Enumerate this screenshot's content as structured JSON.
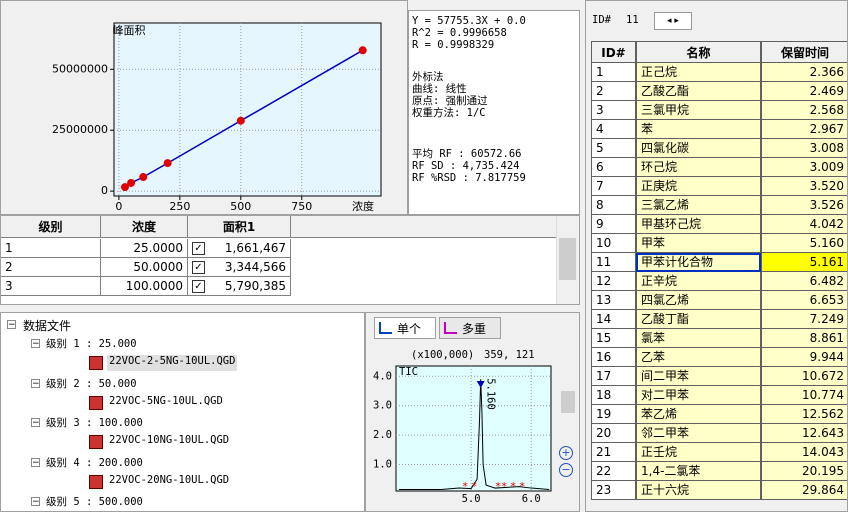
{
  "calibration_chart": {
    "type": "scatter",
    "title": "峰面积",
    "xlabel": "浓度",
    "xlim": [
      -20,
      1075
    ],
    "ylim": [
      -2000000,
      69000000
    ],
    "xticks": [
      0,
      250,
      500,
      750
    ],
    "yticks": [
      0,
      25000000,
      50000000
    ],
    "color": "#e00000",
    "line_color": "#0000c0",
    "x": [
      25,
      50,
      100,
      200,
      500,
      1000
    ],
    "values": [
      1661467,
      3344566,
      5790385,
      11500000,
      28900000,
      57800000
    ]
  },
  "equation": [
    "Y = 57755.3X + 0.0",
    "R^2 = 0.9996658",
    "R = 0.9998329"
  ],
  "method": [
    "外标法",
    "曲线: 线性",
    "原点: 强制通过",
    "权重方法: 1/C"
  ],
  "stats": [
    "平均 RF :  60572.66",
    "RF SD : 4,735.424",
    "RF %RSD : 7.817759"
  ],
  "level_table": {
    "columns": [
      "级别",
      "浓度",
      "面积1"
    ],
    "rows": [
      [
        "1",
        "25.0000",
        "1,661,467"
      ],
      [
        "2",
        "50.0000",
        "3,344,566"
      ],
      [
        "3",
        "100.0000",
        "5,790,385"
      ]
    ]
  },
  "tree": {
    "root": "数据文件",
    "levels": [
      {
        "label": "级别 1 : 25.000",
        "file": "22VOC-2-5NG-10UL.QGD"
      },
      {
        "label": "级别 2 : 50.000",
        "file": "22VOC-5NG-10UL.QGD"
      },
      {
        "label": "级别 3 : 100.000",
        "file": "22VOC-10NG-10UL.QGD"
      },
      {
        "label": "级别 4 : 200.000",
        "file": "22VOC-20NG-10UL.QGD"
      },
      {
        "label": "级别 5 : 500.000"
      }
    ]
  },
  "tabs": [
    "单个",
    "多重"
  ],
  "chromatogram": {
    "type": "line",
    "scale_note": "(x100,000)",
    "cursor": "359, 121",
    "trace_label": "TIC",
    "peak_label": "5.160",
    "xlim": [
      3.75,
      6.33
    ],
    "ylim": [
      0.1,
      4.35
    ],
    "xticks": [
      {
        "value": 5,
        "label": "5.0"
      },
      {
        "value": 6,
        "label": "6.0"
      }
    ],
    "yticks": [
      {
        "value": 1,
        "label": "1.0"
      },
      {
        "value": 2,
        "label": "2.0"
      },
      {
        "value": 3,
        "label": "3.0"
      },
      {
        "value": 4,
        "label": "4.0"
      }
    ],
    "color": "#000000",
    "x": [
      3.8,
      4.5,
      4.8,
      5.0,
      5.1,
      5.14,
      5.16,
      5.18,
      5.2,
      5.25,
      5.4,
      5.8,
      6.0,
      6.3
    ],
    "values": [
      0.15,
      0.15,
      0.2,
      0.18,
      0.5,
      2.5,
      3.9,
      2.8,
      1.0,
      0.3,
      0.2,
      0.25,
      0.2,
      0.15
    ]
  },
  "compound_panel": {
    "id_label": "ID#",
    "id_value": "11",
    "table": {
      "columns": [
        "ID#",
        "名称",
        "保留时间"
      ],
      "rows": [
        [
          "1",
          "正己烷",
          "2.366"
        ],
        [
          "2",
          "乙酸乙酯",
          "2.469"
        ],
        [
          "3",
          "三氯甲烷",
          "2.568"
        ],
        [
          "4",
          "苯",
          "2.967"
        ],
        [
          "5",
          "四氯化碳",
          "3.008"
        ],
        [
          "6",
          "环己烷",
          "3.009"
        ],
        [
          "7",
          "正庚烷",
          "3.520"
        ],
        [
          "8",
          "三氯乙烯",
          "3.526"
        ],
        [
          "9",
          "甲基环己烷",
          "4.042"
        ],
        [
          "10",
          "甲苯",
          "5.160"
        ],
        [
          "11",
          "甲苯计化合物",
          "5.161"
        ],
        [
          "12",
          "正辛烷",
          "6.482"
        ],
        [
          "13",
          "四氯乙烯",
          "6.653"
        ],
        [
          "14",
          "乙酸丁酯",
          "7.249"
        ],
        [
          "15",
          "氯苯",
          "8.861"
        ],
        [
          "16",
          "乙苯",
          "9.944"
        ],
        [
          "17",
          "间二甲苯",
          "10.672"
        ],
        [
          "18",
          "对二甲苯",
          "10.774"
        ],
        [
          "19",
          "苯乙烯",
          "12.562"
        ],
        [
          "20",
          "邻二甲苯",
          "12.643"
        ],
        [
          "21",
          "正壬烷",
          "14.043"
        ],
        [
          "22",
          "1,4-二氯苯",
          "20.195"
        ],
        [
          "23",
          "正十六烷",
          "29.864"
        ]
      ]
    }
  }
}
